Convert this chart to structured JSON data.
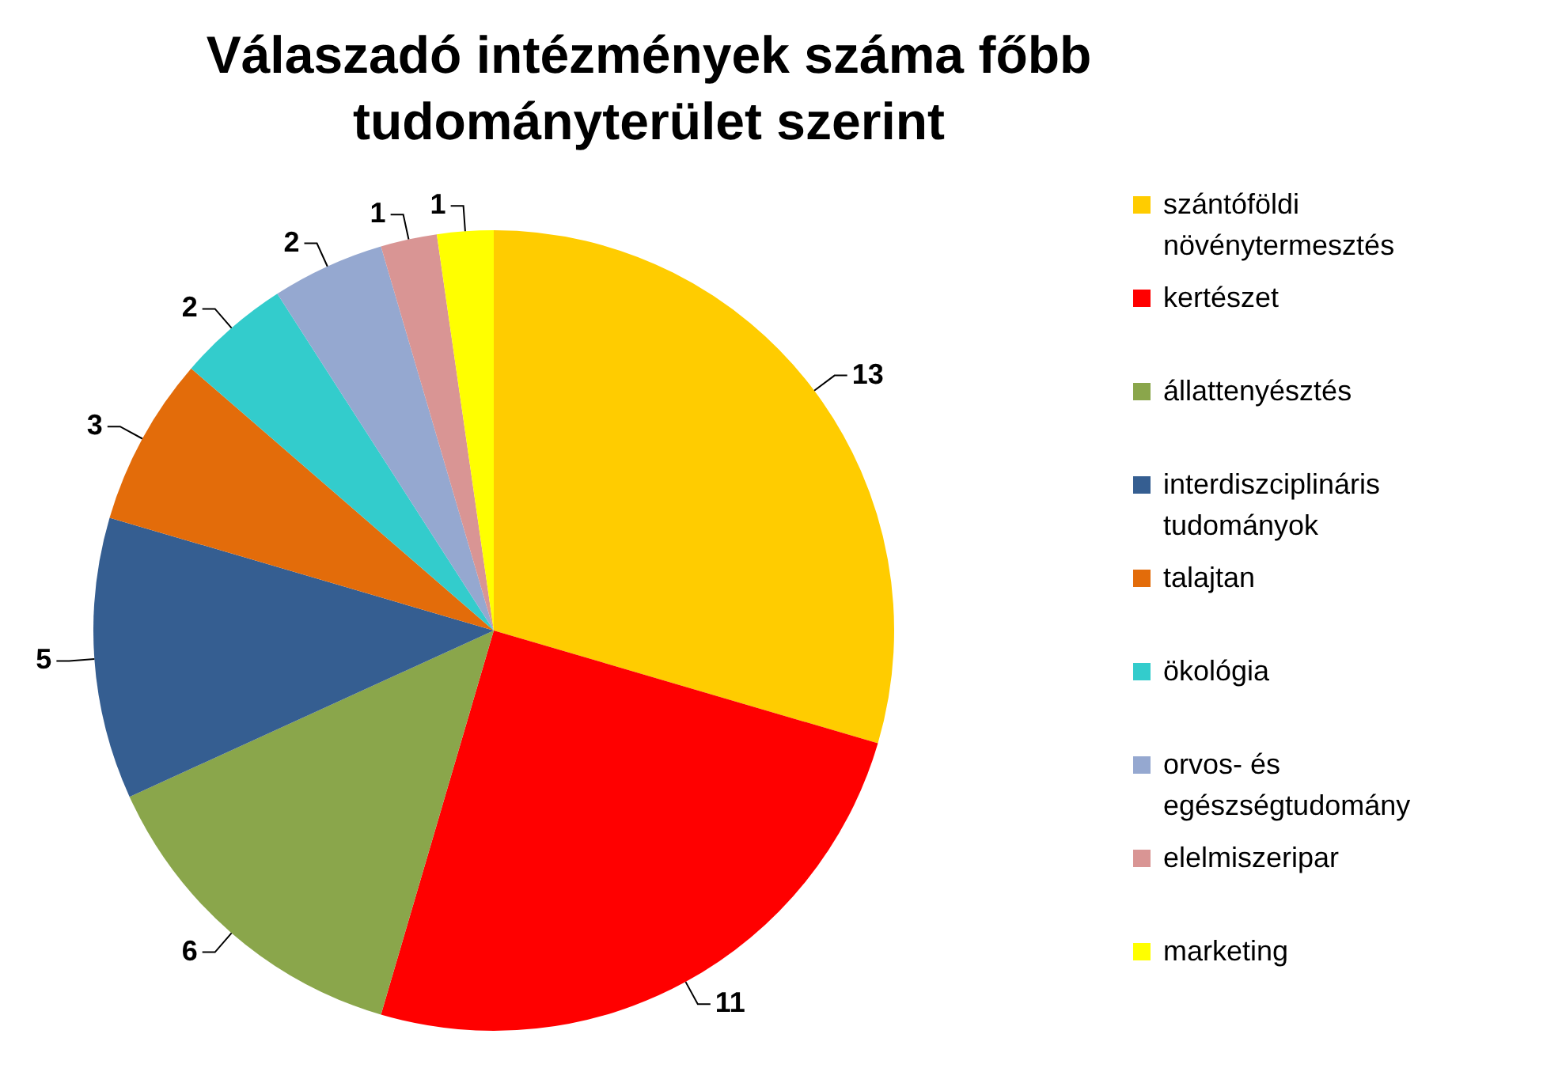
{
  "chart_data": {
    "type": "pie",
    "title": "Válaszadó intézmények  száma főbb tudományterület szerint",
    "categories": [
      "szántóföldi növénytermesztés",
      "kertészet",
      "állattenyésztés",
      "interdiszciplináris tudományok",
      "talajtan",
      "ökológia",
      "orvos- és egészségtudomány",
      "elelmiszeripar",
      "marketing"
    ],
    "values": [
      13,
      11,
      6,
      5,
      3,
      2,
      2,
      1,
      1
    ],
    "colors": [
      "#ffcc00",
      "#ff0000",
      "#8aa64b",
      "#355e91",
      "#e36c0a",
      "#33cccc",
      "#95a8d0",
      "#d99594",
      "#ffff00"
    ],
    "data_labels": true,
    "legend": "right"
  }
}
